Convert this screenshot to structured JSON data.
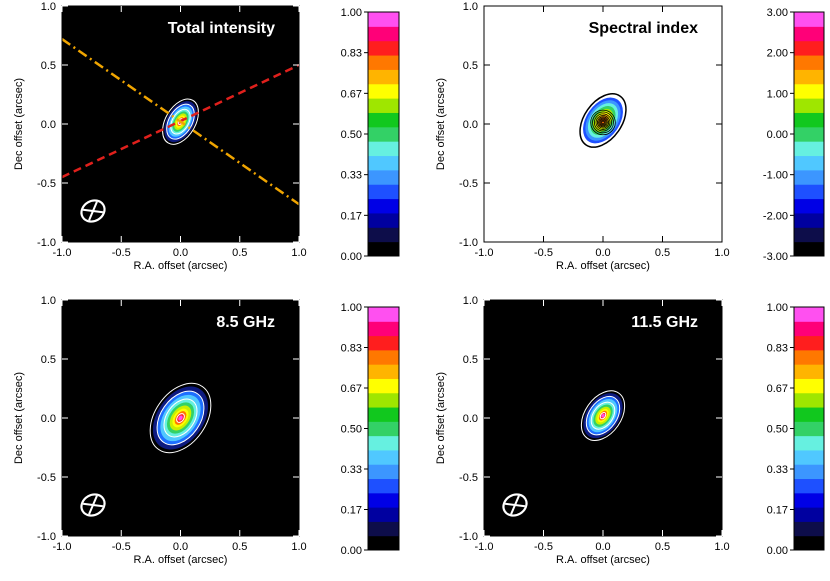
{
  "chart_data": [
    {
      "type": "heatmap",
      "title": "Total intensity",
      "xlabel": "R.A. offset (arcsec)",
      "ylabel": "Dec offset (arcsec)",
      "xlim": [
        -1.0,
        1.0
      ],
      "ylim": [
        -1.0,
        1.0
      ],
      "xticks": [
        "-1.0",
        "-0.5",
        "0.0",
        "0.5",
        "1.0"
      ],
      "yticks": [
        "-1.0",
        "-0.5",
        "0.0",
        "0.5",
        "1.0"
      ],
      "background": "dark",
      "title_color": "#ffffff",
      "source": {
        "x": 0.0,
        "y": 0.02,
        "pa_deg": 30,
        "major": 0.18,
        "minor": 0.1
      },
      "lines": [
        {
          "style": "dashed",
          "color": "#e0201c",
          "x1": -1.0,
          "y1": -0.45,
          "x2": 1.0,
          "y2": 0.5
        },
        {
          "style": "dash-dot",
          "color": "#f0a500",
          "x1": -1.0,
          "y1": 0.72,
          "x2": 1.0,
          "y2": -0.68
        }
      ],
      "colorbar": {
        "ticks": [
          "1.00",
          "0.83",
          "0.67",
          "0.50",
          "0.33",
          "0.17",
          "0.00"
        ]
      }
    },
    {
      "type": "heatmap",
      "title": "Spectral index",
      "xlabel": "R.A. offset (arcsec)",
      "ylabel": "Dec offset (arcsec)",
      "xlim": [
        -1.0,
        1.0
      ],
      "ylim": [
        -1.0,
        1.0
      ],
      "xticks": [
        "-1.0",
        "-0.5",
        "0.0",
        "0.5",
        "1.0"
      ],
      "yticks": [
        "-1.0",
        "-0.5",
        "0.0",
        "0.5",
        "1.0"
      ],
      "background": "light",
      "title_color": "#000000",
      "source": {
        "x": 0.0,
        "y": 0.03,
        "pa_deg": 35,
        "major": 0.25,
        "minor": 0.15
      },
      "lines": [],
      "colorbar": {
        "ticks": [
          "3.00",
          "2.00",
          "1.00",
          "0.00",
          "-1.00",
          "-2.00",
          "-3.00"
        ]
      }
    },
    {
      "type": "heatmap",
      "title": "8.5 GHz",
      "xlabel": "R.A. offset (arcsec)",
      "ylabel": "Dec offset (arcsec)",
      "xlim": [
        -1.0,
        1.0
      ],
      "ylim": [
        -1.0,
        1.0
      ],
      "xticks": [
        "-1.0",
        "-0.5",
        "0.0",
        "0.5",
        "1.0"
      ],
      "yticks": [
        "-1.0",
        "-0.5",
        "0.0",
        "0.5",
        "1.0"
      ],
      "background": "dark",
      "title_color": "#ffffff",
      "source": {
        "x": 0.0,
        "y": 0.0,
        "pa_deg": 35,
        "major": 0.28,
        "minor": 0.17
      },
      "lines": [],
      "colorbar": {
        "ticks": [
          "1.00",
          "0.83",
          "0.67",
          "0.50",
          "0.33",
          "0.17",
          "0.00"
        ]
      }
    },
    {
      "type": "heatmap",
      "title": "11.5 GHz",
      "xlabel": "R.A. offset (arcsec)",
      "ylabel": "Dec offset (arcsec)",
      "xlim": [
        -1.0,
        1.0
      ],
      "ylim": [
        -1.0,
        1.0
      ],
      "xticks": [
        "-1.0",
        "-0.5",
        "0.0",
        "0.5",
        "1.0"
      ],
      "yticks": [
        "-1.0",
        "-0.5",
        "0.0",
        "0.5",
        "1.0"
      ],
      "background": "dark",
      "title_color": "#ffffff",
      "source": {
        "x": 0.0,
        "y": 0.02,
        "pa_deg": 35,
        "major": 0.2,
        "minor": 0.12
      },
      "lines": [],
      "colorbar": {
        "ticks": [
          "1.00",
          "0.83",
          "0.67",
          "0.50",
          "0.33",
          "0.17",
          "0.00"
        ]
      }
    }
  ],
  "palette": [
    "#000000",
    "#0d0d4a",
    "#0000a0",
    "#0000e6",
    "#1e50ff",
    "#3c96ff",
    "#50c8ff",
    "#66f0e0",
    "#33d166",
    "#11c81e",
    "#9fe600",
    "#ffff00",
    "#ffb400",
    "#ff7800",
    "#ff1e1e",
    "#ff0078",
    "#ff50f0"
  ]
}
